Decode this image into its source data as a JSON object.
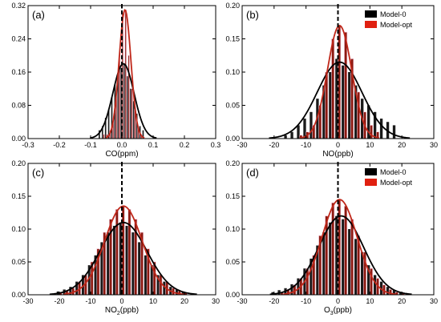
{
  "legend": {
    "model0": "Model-0",
    "modelopt": "Model-opt"
  },
  "colors": {
    "bar_black": "#1a1a1a",
    "bar_red": "#8b1a10",
    "curve_black": "#000000",
    "curve_red": "#c0281a",
    "legend_red": "#e02010",
    "ref_line": "#000000"
  },
  "chart_data": [
    {
      "panel": "(a)",
      "type": "bar",
      "xlabel_parts": [
        "CO(ppm)"
      ],
      "xlim": [
        -0.3,
        0.3
      ],
      "ylim": [
        0,
        0.32
      ],
      "xticks": [
        -0.3,
        -0.2,
        -0.1,
        0.0,
        0.1,
        0.2,
        0.3
      ],
      "xtick_labels": [
        "-0.3",
        "-0.2",
        "-0.1",
        "0.0",
        "0.1",
        "0.2",
        "0.3"
      ],
      "yticks": [
        0,
        0.08,
        0.16,
        0.24,
        0.32
      ],
      "ytick_labels": [
        "0.00",
        "0.08",
        "0.16",
        "0.24",
        "0.32"
      ],
      "legend": false,
      "bin_centers": [
        -0.07,
        -0.06,
        -0.05,
        -0.04,
        -0.03,
        -0.02,
        -0.01,
        0.0,
        0.01,
        0.02,
        0.03,
        0.04,
        0.05,
        0.06,
        0.07
      ],
      "series": [
        {
          "name": "Model-0",
          "values": [
            0.02,
            0.03,
            0.05,
            0.07,
            0.1,
            0.13,
            0.16,
            0.17,
            0.18,
            0.15,
            0.12,
            0.09,
            0.06,
            0.03,
            0.02
          ]
        },
        {
          "name": "Model-opt",
          "values": [
            0.0,
            0.01,
            0.01,
            0.02,
            0.05,
            0.1,
            0.2,
            0.3,
            0.31,
            0.2,
            0.12,
            0.07,
            0.03,
            0.01,
            0.0
          ]
        }
      ],
      "fits": [
        {
          "name": "Model-0",
          "mu": 0.005,
          "sigma": 0.034,
          "peak": 0.18
        },
        {
          "name": "Model-opt",
          "mu": 0.01,
          "sigma": 0.019,
          "peak": 0.31
        }
      ]
    },
    {
      "panel": "(b)",
      "type": "bar",
      "xlabel_parts": [
        "NO(ppb)"
      ],
      "xlim": [
        -30,
        30
      ],
      "ylim": [
        0,
        0.2
      ],
      "xticks": [
        -30,
        -20,
        -10,
        0,
        10,
        20,
        30
      ],
      "xtick_labels": [
        "-30",
        "-20",
        "-10",
        "0",
        "10",
        "20",
        "30"
      ],
      "yticks": [
        0,
        0.05,
        0.1,
        0.15,
        0.2
      ],
      "ytick_labels": [
        "0.00",
        "0.05",
        "0.10",
        "0.15",
        "0.20"
      ],
      "legend": true,
      "bin_centers": [
        -16,
        -14,
        -12,
        -10,
        -8,
        -6,
        -4,
        -2,
        0,
        2,
        4,
        6,
        8,
        10,
        12,
        14,
        16,
        18
      ],
      "series": [
        {
          "name": "Model-0",
          "values": [
            0.005,
            0.01,
            0.02,
            0.03,
            0.04,
            0.06,
            0.08,
            0.1,
            0.12,
            0.11,
            0.1,
            0.08,
            0.06,
            0.05,
            0.04,
            0.03,
            0.025,
            0.02
          ]
        },
        {
          "name": "Model-opt",
          "values": [
            0.0,
            0.0,
            0.005,
            0.01,
            0.02,
            0.05,
            0.1,
            0.15,
            0.17,
            0.16,
            0.12,
            0.07,
            0.04,
            0.02,
            0.01,
            0.0,
            0.0,
            0.0
          ]
        }
      ],
      "fits": [
        {
          "name": "Model-0",
          "mu": 0.5,
          "sigma": 7.0,
          "peak": 0.115
        },
        {
          "name": "Model-opt",
          "mu": 0.5,
          "sigma": 3.8,
          "peak": 0.17
        }
      ]
    },
    {
      "panel": "(c)",
      "type": "bar",
      "xlabel_parts": [
        "NO",
        "2",
        "(ppb)"
      ],
      "xlim": [
        -30,
        30
      ],
      "ylim": [
        0,
        0.2
      ],
      "xticks": [
        -30,
        -20,
        -10,
        0,
        10,
        20,
        30
      ],
      "xtick_labels": [
        "-30",
        "-20",
        "-10",
        "0",
        "10",
        "20",
        "30"
      ],
      "yticks": [
        0,
        0.05,
        0.1,
        0.15,
        0.2
      ],
      "ytick_labels": [
        "0.00",
        "0.05",
        "0.10",
        "0.15",
        "0.20"
      ],
      "legend": false,
      "bin_centers": [
        -20,
        -18,
        -16,
        -14,
        -12,
        -10,
        -8,
        -6,
        -4,
        -2,
        0,
        2,
        4,
        6,
        8,
        10,
        12,
        14,
        16,
        18,
        20
      ],
      "series": [
        {
          "name": "Model-0",
          "values": [
            0.005,
            0.008,
            0.012,
            0.02,
            0.03,
            0.045,
            0.06,
            0.08,
            0.095,
            0.105,
            0.11,
            0.105,
            0.095,
            0.08,
            0.06,
            0.045,
            0.03,
            0.02,
            0.012,
            0.008,
            0.005
          ]
        },
        {
          "name": "Model-opt",
          "values": [
            0.003,
            0.006,
            0.01,
            0.02,
            0.03,
            0.05,
            0.07,
            0.095,
            0.115,
            0.13,
            0.135,
            0.13,
            0.115,
            0.095,
            0.07,
            0.05,
            0.03,
            0.02,
            0.01,
            0.006,
            0.003
          ]
        }
      ],
      "fits": [
        {
          "name": "Model-0",
          "mu": 0.5,
          "sigma": 7.5,
          "peak": 0.11
        },
        {
          "name": "Model-opt",
          "mu": 0.5,
          "sigma": 6.0,
          "peak": 0.135
        }
      ]
    },
    {
      "panel": "(d)",
      "type": "bar",
      "xlabel_parts": [
        "O",
        "3",
        "(ppb)"
      ],
      "xlim": [
        -30,
        30
      ],
      "ylim": [
        0,
        0.2
      ],
      "xticks": [
        -30,
        -20,
        -10,
        0,
        10,
        20,
        30
      ],
      "xtick_labels": [
        "-30",
        "-20",
        "-10",
        "0",
        "10",
        "20",
        "30"
      ],
      "yticks": [
        0,
        0.05,
        0.1,
        0.15,
        0.2
      ],
      "ytick_labels": [
        "0.00",
        "0.05",
        "0.10",
        "0.15",
        "0.20"
      ],
      "legend": true,
      "bin_centers": [
        -20,
        -18,
        -16,
        -14,
        -12,
        -10,
        -8,
        -6,
        -4,
        -2,
        0,
        2,
        4,
        6,
        8,
        10,
        12,
        14,
        16,
        18,
        20
      ],
      "series": [
        {
          "name": "Model-0",
          "values": [
            0.004,
            0.007,
            0.01,
            0.016,
            0.025,
            0.04,
            0.055,
            0.075,
            0.095,
            0.11,
            0.12,
            0.115,
            0.1,
            0.085,
            0.065,
            0.045,
            0.03,
            0.02,
            0.012,
            0.007,
            0.004
          ]
        },
        {
          "name": "Model-opt",
          "values": [
            0.002,
            0.004,
            0.008,
            0.015,
            0.025,
            0.04,
            0.06,
            0.09,
            0.12,
            0.14,
            0.145,
            0.135,
            0.115,
            0.09,
            0.065,
            0.04,
            0.025,
            0.015,
            0.008,
            0.004,
            0.002
          ]
        }
      ],
      "fits": [
        {
          "name": "Model-0",
          "mu": 1.0,
          "sigma": 7.0,
          "peak": 0.12
        },
        {
          "name": "Model-opt",
          "mu": 0.5,
          "sigma": 5.5,
          "peak": 0.145
        }
      ]
    }
  ]
}
